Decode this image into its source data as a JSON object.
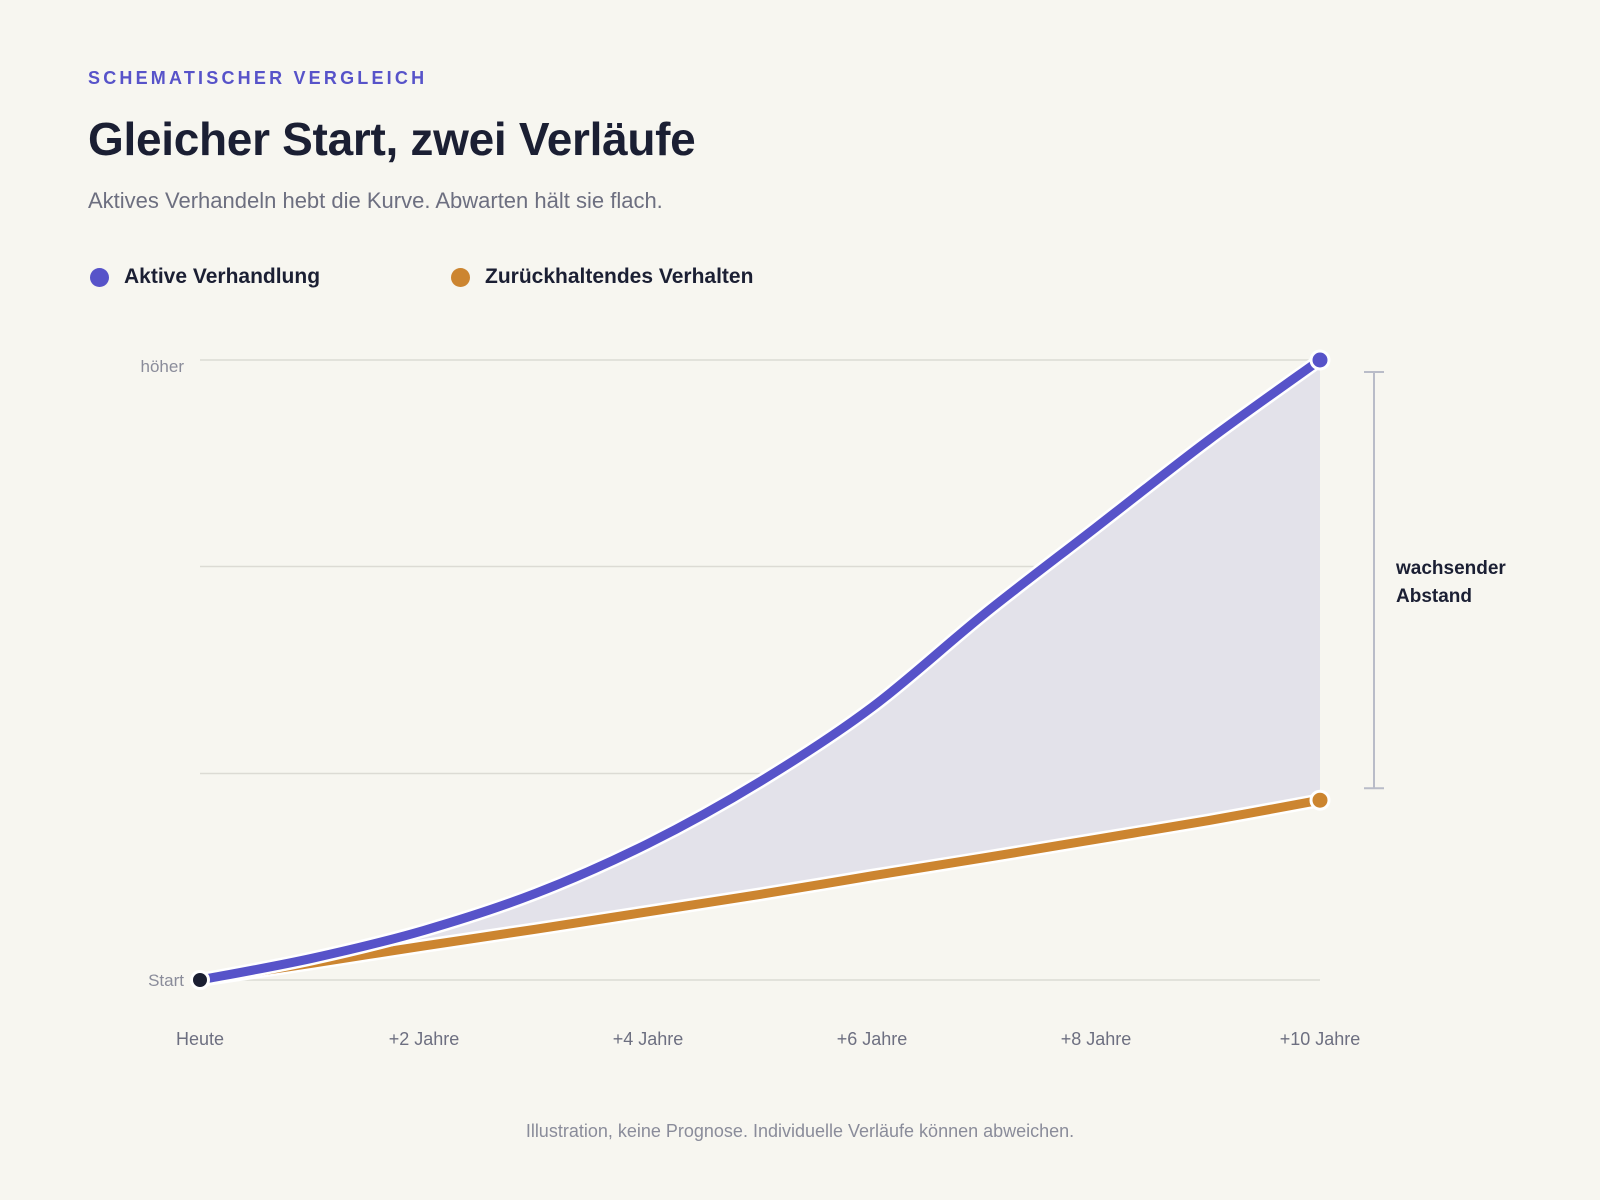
{
  "header": {
    "eyebrow": "SCHEMATISCHER VERGLEICH",
    "title": "Gleicher Start, zwei Verläufe",
    "subtitle": "Aktives Verhandeln hebt die Kurve. Abwarten hält sie flach."
  },
  "footnote": "Illustration, keine Prognose. Individuelle Verläufe können abweichen.",
  "colors": {
    "active": "#5753c9",
    "passive": "#cc8530",
    "start_dot": "#1b1f33",
    "gap_fill": "#e3e2ea",
    "grid": "#dcdbd4",
    "bracket": "#b9bcc8"
  },
  "chart_data": {
    "type": "line",
    "x": [
      0,
      2,
      4,
      6,
      8,
      10
    ],
    "xtick_labels": [
      "Heute",
      "+2 Jahre",
      "+4 Jahre",
      "+6 Jahre",
      "+8 Jahre",
      "+10 Jahre"
    ],
    "xlim": [
      0,
      10
    ],
    "ylim": [
      0,
      100
    ],
    "ytick_values": [
      0,
      100
    ],
    "ytick_labels": [
      "Start",
      "höher"
    ],
    "gridlines_y": [
      0,
      33.3,
      66.7,
      100
    ],
    "grid": true,
    "legend_position": "top-left",
    "series": [
      {
        "name": "Aktive Verhandlung",
        "color_key": "active",
        "x": [
          0,
          1,
          2,
          3,
          4,
          5,
          6,
          7,
          8,
          9,
          10
        ],
        "values": [
          0,
          3.5,
          8,
          14,
          22,
          32,
          44,
          59,
          73,
          87,
          100
        ]
      },
      {
        "name": "Zurückhaltendes Verhalten",
        "color_key": "passive",
        "x": [
          0,
          1,
          2,
          3,
          4,
          5,
          6,
          7,
          8,
          9,
          10
        ],
        "values": [
          0,
          2.7,
          5.5,
          8.2,
          11,
          13.8,
          16.8,
          19.7,
          22.7,
          25.7,
          29
        ]
      }
    ],
    "annotation": {
      "lines": [
        "wachsender",
        "Abstand"
      ]
    }
  }
}
